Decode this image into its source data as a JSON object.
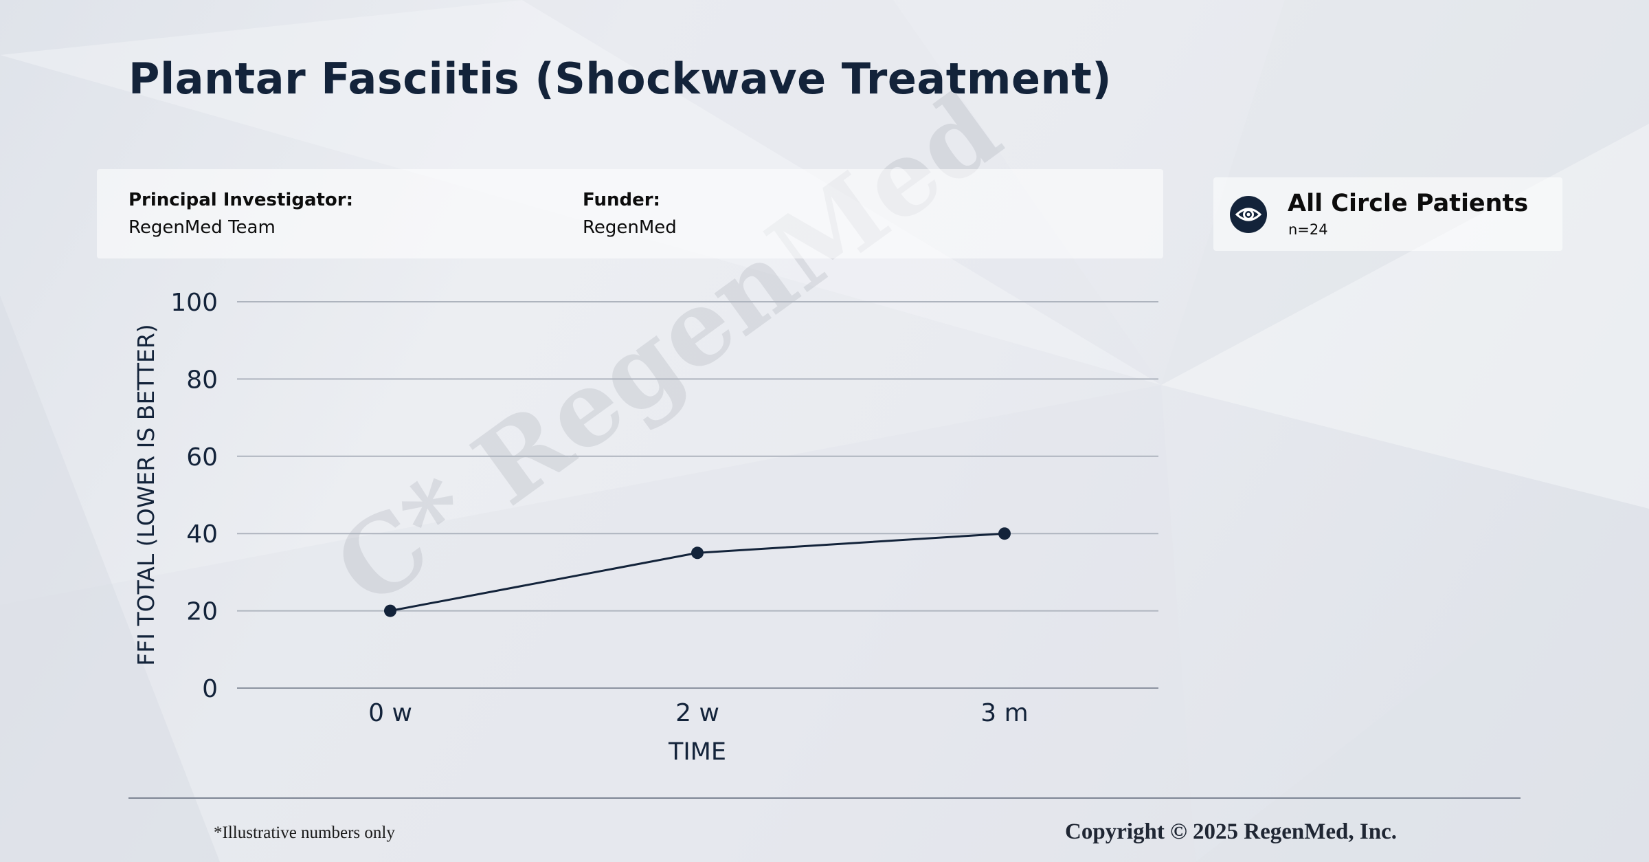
{
  "title": "Plantar Fasciitis (Shockwave Treatment)",
  "info": {
    "investigator_label": "Principal Investigator:",
    "investigator_value": "RegenMed Team",
    "funder_label": "Funder:",
    "funder_value": "RegenMed"
  },
  "cohort": {
    "title": "All Circle Patients",
    "subtitle": "n=24",
    "icon": "eye-icon"
  },
  "watermark": "C* RegenMed",
  "chart_data": {
    "type": "line",
    "categories": [
      "0 w",
      "2 w",
      "3 m"
    ],
    "series": [
      {
        "values": [
          20,
          35,
          40
        ],
        "color": "#13233a"
      }
    ],
    "xlabel": "TIME",
    "ylabel": "FFI TOTAL (LOWER IS BETTER)",
    "ylim": [
      0,
      100
    ],
    "yticks": [
      0,
      20,
      40,
      60,
      80,
      100
    ],
    "grid": true
  },
  "footer": {
    "note": "*Illustrative numbers only",
    "copyright": "Copyright © 2025 RegenMed, Inc."
  }
}
